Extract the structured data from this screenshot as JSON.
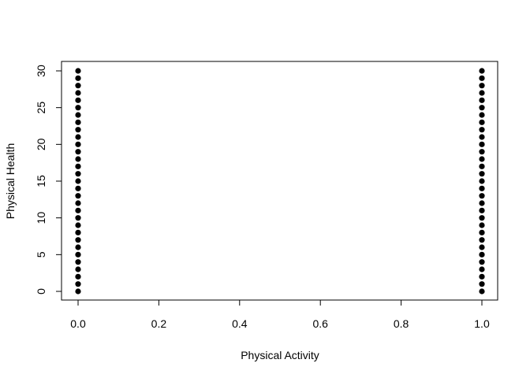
{
  "chart_data": {
    "type": "scatter",
    "title": "",
    "xlabel": "Physical Activity",
    "ylabel": "Physical Health",
    "xlim": [
      0.0,
      1.0
    ],
    "ylim": [
      0,
      30
    ],
    "xticks": [
      0.0,
      0.2,
      0.4,
      0.6,
      0.8,
      1.0
    ],
    "xtick_labels": [
      "0.0",
      "0.2",
      "0.4",
      "0.6",
      "0.8",
      "1.0"
    ],
    "yticks": [
      0,
      5,
      10,
      15,
      20,
      25,
      30
    ],
    "ytick_labels": [
      "0",
      "5",
      "10",
      "15",
      "20",
      "25",
      "30"
    ],
    "grid": false,
    "legend": "none",
    "point_color": "#000000",
    "series": [
      {
        "points": [
          [
            0,
            0
          ],
          [
            0,
            1
          ],
          [
            0,
            2
          ],
          [
            0,
            3
          ],
          [
            0,
            4
          ],
          [
            0,
            5
          ],
          [
            0,
            6
          ],
          [
            0,
            7
          ],
          [
            0,
            8
          ],
          [
            0,
            9
          ],
          [
            0,
            10
          ],
          [
            0,
            11
          ],
          [
            0,
            12
          ],
          [
            0,
            13
          ],
          [
            0,
            14
          ],
          [
            0,
            15
          ],
          [
            0,
            16
          ],
          [
            0,
            17
          ],
          [
            0,
            18
          ],
          [
            0,
            19
          ],
          [
            0,
            20
          ],
          [
            0,
            21
          ],
          [
            0,
            22
          ],
          [
            0,
            23
          ],
          [
            0,
            24
          ],
          [
            0,
            25
          ],
          [
            0,
            26
          ],
          [
            0,
            27
          ],
          [
            0,
            28
          ],
          [
            0,
            29
          ],
          [
            0,
            30
          ],
          [
            1,
            0
          ],
          [
            1,
            1
          ],
          [
            1,
            2
          ],
          [
            1,
            3
          ],
          [
            1,
            4
          ],
          [
            1,
            5
          ],
          [
            1,
            6
          ],
          [
            1,
            7
          ],
          [
            1,
            8
          ],
          [
            1,
            9
          ],
          [
            1,
            10
          ],
          [
            1,
            11
          ],
          [
            1,
            12
          ],
          [
            1,
            13
          ],
          [
            1,
            14
          ],
          [
            1,
            15
          ],
          [
            1,
            16
          ],
          [
            1,
            17
          ],
          [
            1,
            18
          ],
          [
            1,
            19
          ],
          [
            1,
            20
          ],
          [
            1,
            21
          ],
          [
            1,
            22
          ],
          [
            1,
            23
          ],
          [
            1,
            24
          ],
          [
            1,
            25
          ],
          [
            1,
            26
          ],
          [
            1,
            27
          ],
          [
            1,
            28
          ],
          [
            1,
            29
          ],
          [
            1,
            30
          ]
        ]
      }
    ]
  }
}
